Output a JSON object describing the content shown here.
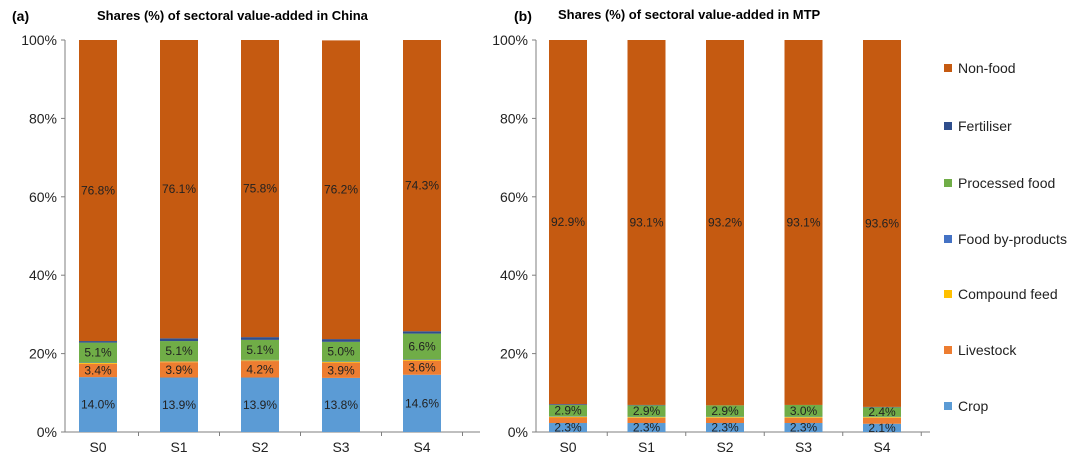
{
  "chart_data": [
    {
      "type": "stacked-bar",
      "panel_label": "(a)",
      "title": "Shares (%) of sectoral value-added in China",
      "categories": [
        "S0",
        "S1",
        "S2",
        "S3",
        "S4"
      ],
      "ylim": [
        0,
        100
      ],
      "yticks": [
        "0%",
        "20%",
        "40%",
        "60%",
        "80%",
        "100%"
      ],
      "series": [
        {
          "name": "Crop",
          "values": [
            14.0,
            13.9,
            13.9,
            13.8,
            14.6
          ],
          "labels": [
            "14.0%",
            "13.9%",
            "13.9%",
            "13.8%",
            "14.6%"
          ]
        },
        {
          "name": "Livestock",
          "values": [
            3.4,
            3.9,
            4.2,
            3.9,
            3.6
          ],
          "labels": [
            "3.4%",
            "3.9%",
            "4.2%",
            "3.9%",
            "3.6%"
          ]
        },
        {
          "name": "Compound feed",
          "values": [
            0.2,
            0.2,
            0.2,
            0.2,
            0.2
          ],
          "labels": []
        },
        {
          "name": "Food by-products",
          "values": [
            0.1,
            0.1,
            0.1,
            0.1,
            0.1
          ],
          "labels": []
        },
        {
          "name": "Processed food",
          "values": [
            5.1,
            5.1,
            5.1,
            5.0,
            6.6
          ],
          "labels": [
            "5.1%",
            "5.1%",
            "5.1%",
            "5.0%",
            "6.6%"
          ]
        },
        {
          "name": "Fertiliser",
          "values": [
            0.4,
            0.7,
            0.7,
            0.7,
            0.6
          ],
          "labels": []
        },
        {
          "name": "Non-food",
          "values": [
            76.8,
            76.1,
            75.8,
            76.2,
            74.3
          ],
          "labels": [
            "76.8%",
            "76.1%",
            "75.8%",
            "76.2%",
            "74.3%"
          ]
        }
      ]
    },
    {
      "type": "stacked-bar",
      "panel_label": "(b)",
      "title": "Shares (%) of sectoral value-added in MTP",
      "categories": [
        "S0",
        "S1",
        "S2",
        "S3",
        "S4"
      ],
      "ylim": [
        0,
        100
      ],
      "yticks": [
        "0%",
        "20%",
        "40%",
        "60%",
        "80%",
        "100%"
      ],
      "series": [
        {
          "name": "Crop",
          "values": [
            2.3,
            2.3,
            2.3,
            2.3,
            2.1
          ],
          "labels": [
            "2.3%",
            "2.3%",
            "2.3%",
            "2.3%",
            "2.1%"
          ]
        },
        {
          "name": "Livestock",
          "values": [
            1.4,
            1.3,
            1.3,
            1.3,
            1.5
          ],
          "labels": []
        },
        {
          "name": "Compound feed",
          "values": [
            0.2,
            0.2,
            0.2,
            0.2,
            0.2
          ],
          "labels": []
        },
        {
          "name": "Food by-products",
          "values": [
            0.1,
            0.1,
            0.1,
            0.1,
            0.1
          ],
          "labels": []
        },
        {
          "name": "Processed food",
          "values": [
            2.9,
            2.9,
            2.9,
            3.0,
            2.4
          ],
          "labels": [
            "2.9%",
            "2.9%",
            "2.9%",
            "3.0%",
            "2.4%"
          ]
        },
        {
          "name": "Fertiliser",
          "values": [
            0.2,
            0.1,
            0.0,
            0.0,
            0.1
          ],
          "labels": []
        },
        {
          "name": "Non-food",
          "values": [
            92.9,
            93.1,
            93.2,
            93.1,
            93.6
          ],
          "labels": [
            "92.9%",
            "93.1%",
            "93.2%",
            "93.1%",
            "93.6%"
          ]
        }
      ]
    }
  ],
  "legend": {
    "placement": "right",
    "items": [
      {
        "name": "Non-food",
        "color": "#C55A11"
      },
      {
        "name": "Fertiliser",
        "color": "#2F4E8C"
      },
      {
        "name": "Processed food",
        "color": "#70AD47"
      },
      {
        "name": "Food by-products",
        "color": "#4472C4"
      },
      {
        "name": "Compound feed",
        "color": "#FFC000"
      },
      {
        "name": "Livestock",
        "color": "#ED7D31"
      },
      {
        "name": "Crop",
        "color": "#5B9BD5"
      }
    ]
  },
  "colors": {
    "Crop": "#5B9BD5",
    "Livestock": "#ED7D31",
    "Compound feed": "#FFC000",
    "Food by-products": "#4472C4",
    "Processed food": "#70AD47",
    "Fertiliser": "#2F4E8C",
    "Non-food": "#C55A11",
    "axis": "#7F7F7F"
  }
}
